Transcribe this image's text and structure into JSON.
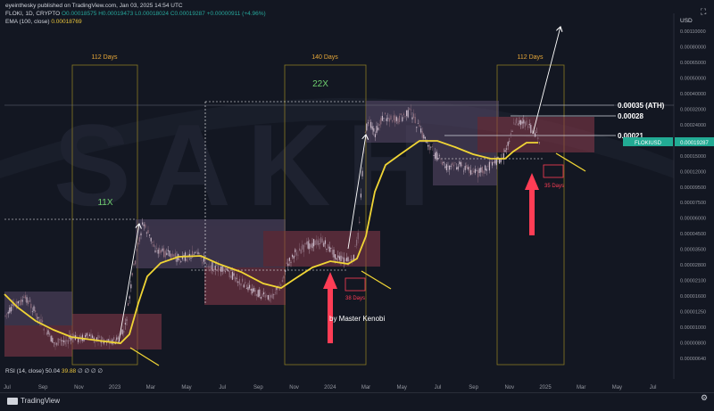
{
  "header": {
    "publisher": "eyeinthesky published on TradingView.com, Jan 03, 2025 14:54 UTC",
    "symbol": "FLOKI, 1D, CRYPTO",
    "ohlc_o": "O0.00018575",
    "ohlc_h": "H0.00019473",
    "ohlc_l": "L0.00018024",
    "ohlc_c": "C0.00019287",
    "change": "+0.00000911 (+4.96%)",
    "ema_label": "EMA (100, close)",
    "ema_value": "0.00018769",
    "rsi_label": "RSI (14, close)",
    "rsi_value1": "50.04",
    "rsi_value2": "39.88",
    "rsi_rest": "∅ ∅ ∅ ∅"
  },
  "footer": {
    "brand": "TradingView"
  },
  "colors": {
    "bg": "#131722",
    "candle_up": "#b8a8b8",
    "ema": "#f0d535",
    "arrow": "#ff3d55",
    "box_red": "#b23a4f",
    "box_purple": "#7a6a9a",
    "badge": "#22ab94"
  },
  "chart_data": {
    "type": "line",
    "y_scale": "log",
    "currency": "USD",
    "price_ticks": [
      "0.00110000",
      "0.00080000",
      "0.00065000",
      "0.00050000",
      "0.00040000",
      "0.00032000",
      "0.00024000",
      "0.00019287",
      "0.00015000",
      "0.00012000",
      "0.00009500",
      "0.00007500",
      "0.00006000",
      "0.00004500",
      "0.00003500",
      "0.00002800",
      "0.00002100",
      "0.00001600",
      "0.00001250",
      "0.00001000",
      "0.00000800",
      "0.00000640"
    ],
    "time_ticks": [
      "Jul",
      "Sep",
      "Nov",
      "2023",
      "Mar",
      "May",
      "Jul",
      "Sep",
      "Nov",
      "2024",
      "Mar",
      "May",
      "Jul",
      "Sep",
      "Nov",
      "2025",
      "Mar",
      "May",
      "Jul"
    ],
    "current_price_label": "FLOKIUSD",
    "current_price": "0.00019287",
    "annotations": {
      "cycle1_days": "112 Days",
      "cycle2_days": "140 Days",
      "cycle3_days": "112 Days",
      "mult1": "11X",
      "mult2": "22X",
      "level_ath": "0.00035 (ATH)",
      "level_1": "0.00028",
      "level_2": "0.00021",
      "days_a": "38 Days",
      "days_b": "35 Days",
      "author": "by Master Kenobi"
    }
  }
}
